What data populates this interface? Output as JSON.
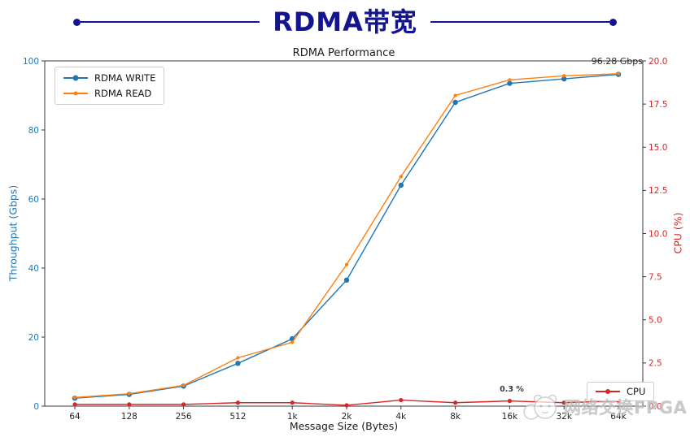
{
  "header": {
    "title": "RDMA带宽",
    "accent_color": "#14148F"
  },
  "chart_data": {
    "type": "line",
    "title": "RDMA Performance",
    "xlabel": "Message Size (Bytes)",
    "categories": [
      "64",
      "128",
      "256",
      "512",
      "1k",
      "2k",
      "4k",
      "8k",
      "16k",
      "32k",
      "64k"
    ],
    "left_axis": {
      "label": "Throughput (Gbps)",
      "min": 0,
      "max": 100,
      "ticks": [
        "0",
        "20",
        "40",
        "60",
        "80",
        "100"
      ],
      "color": "#1f77b4"
    },
    "right_axis": {
      "label": "CPU (%)",
      "min": 0,
      "max": 20,
      "ticks": [
        "0.0",
        "2.5",
        "5.0",
        "7.5",
        "10.0",
        "12.5",
        "15.0",
        "17.5",
        "20.0"
      ],
      "color": "#d62728"
    },
    "grid": false,
    "legend_positions": {
      "throughput": "upper left",
      "cpu": "lower right"
    },
    "series": [
      {
        "name": "RDMA WRITE",
        "axis": "left",
        "color": "#1f77b4",
        "values": [
          2.3,
          3.4,
          5.8,
          12.4,
          19.5,
          36.5,
          64.0,
          88.0,
          93.5,
          94.8,
          96.1
        ]
      },
      {
        "name": "RDMA READ",
        "axis": "left",
        "color": "#ff7f0e",
        "values": [
          2.5,
          3.6,
          6.0,
          14.0,
          18.5,
          41.0,
          66.5,
          90.0,
          94.5,
          95.7,
          96.28
        ]
      },
      {
        "name": "CPU",
        "axis": "right",
        "color": "#d62728",
        "values": [
          0.1,
          0.1,
          0.1,
          0.2,
          0.2,
          0.05,
          0.35,
          0.2,
          0.3,
          0.2,
          0.3
        ]
      }
    ],
    "annotations": [
      {
        "text": "96.28 Gbps",
        "target": "64k peak throughput"
      },
      {
        "text": "0.3 %",
        "target": "16k cpu"
      }
    ]
  },
  "watermark": {
    "text": "网络交换FPGA"
  }
}
